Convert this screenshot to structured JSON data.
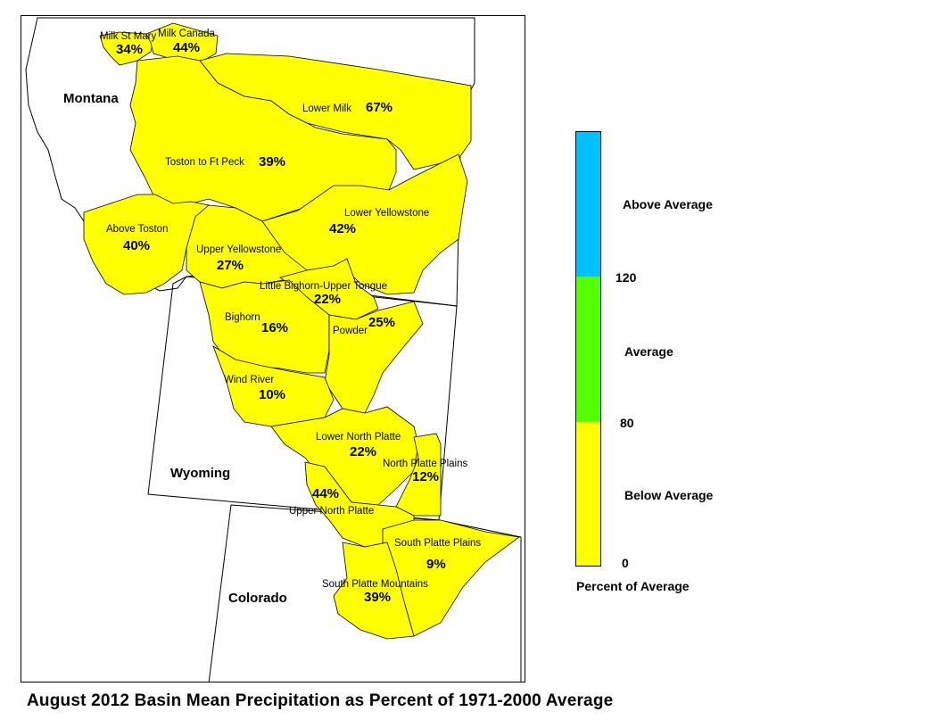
{
  "title": "August 2012 Basin Mean Precipitation as Percent of 1971-2000 Average",
  "map": {
    "states": [
      "Montana",
      "Wyoming",
      "Colorado"
    ],
    "basins": [
      {
        "name": "Milk St Mary",
        "percent": "34%"
      },
      {
        "name": "Milk Canada",
        "percent": "44%"
      },
      {
        "name": "Lower Milk",
        "percent": "67%"
      },
      {
        "name": "Toston to Ft Peck",
        "percent": "39%"
      },
      {
        "name": "Above Toston",
        "percent": "40%"
      },
      {
        "name": "Lower Yellowstone",
        "percent": "42%"
      },
      {
        "name": "Upper Yellowstone",
        "percent": "27%"
      },
      {
        "name": "Little Bighorn-Upper Tongue",
        "percent": "22%"
      },
      {
        "name": "Bighorn",
        "percent": "16%"
      },
      {
        "name": "Powder",
        "percent": "25%"
      },
      {
        "name": "Wind River",
        "percent": "10%"
      },
      {
        "name": "Lower North Platte",
        "percent": "22%"
      },
      {
        "name": "North Platte Plains",
        "percent": "12%"
      },
      {
        "name": "Upper North Platte",
        "percent": "44%"
      },
      {
        "name": "South Platte Plains",
        "percent": "9%"
      },
      {
        "name": "South Platte Mountains",
        "percent": "39%"
      }
    ]
  },
  "legend": {
    "title": "Percent of Average",
    "classes": [
      {
        "label": "Above Average",
        "color": "#00c0ff"
      },
      {
        "label": "Average",
        "color": "#55ff00"
      },
      {
        "label": "Below Average",
        "color": "#ffff00"
      }
    ],
    "ticks": [
      "120",
      "80",
      "0"
    ]
  },
  "colors": {
    "basin_fill": "#ffff00",
    "state_outline": "#000000"
  }
}
